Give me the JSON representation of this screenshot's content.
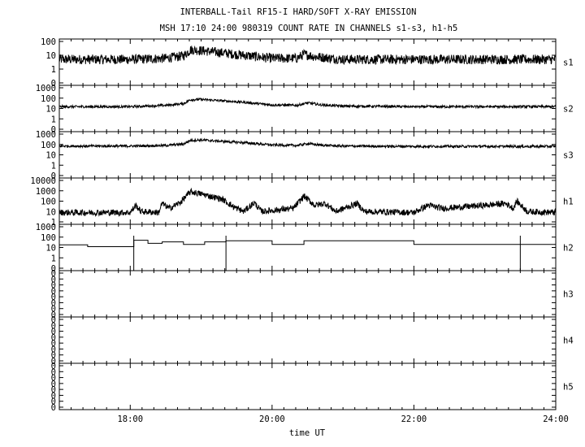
{
  "chart_data": {
    "type": "line",
    "title": "INTERBALL-Tail RF15-I HARD/SOFT X-RAY EMISSION",
    "subtitle": "MSH 17:10 24:00 980319  COUNT RATE IN CHANNELS s1-s3, h1-h5",
    "xlabel": "time UT",
    "x_ticks": [
      "18:00",
      "20:00",
      "22:00",
      "24:00"
    ],
    "x_range_hours": [
      17.0,
      24.0
    ],
    "yscale": "log",
    "grid": false,
    "panels": [
      {
        "name": "s1",
        "y_ticks": [
          "100",
          "10",
          "1",
          "0"
        ],
        "points": [
          [
            17.0,
            5
          ],
          [
            17.5,
            5
          ],
          [
            18.0,
            5
          ],
          [
            18.5,
            6
          ],
          [
            18.75,
            9
          ],
          [
            18.85,
            25
          ],
          [
            19.0,
            22
          ],
          [
            19.3,
            15
          ],
          [
            19.6,
            10
          ],
          [
            20.0,
            6
          ],
          [
            20.35,
            6
          ],
          [
            20.45,
            12
          ],
          [
            20.6,
            8
          ],
          [
            21.0,
            5
          ],
          [
            22.0,
            5
          ],
          [
            23.0,
            5
          ],
          [
            24.0,
            5
          ]
        ]
      },
      {
        "name": "s2",
        "y_ticks": [
          "1000",
          "100",
          "10",
          "1",
          "0"
        ],
        "points": [
          [
            17.0,
            15
          ],
          [
            17.5,
            15
          ],
          [
            18.0,
            15
          ],
          [
            18.5,
            20
          ],
          [
            18.75,
            30
          ],
          [
            18.85,
            70
          ],
          [
            19.0,
            75
          ],
          [
            19.3,
            55
          ],
          [
            19.6,
            40
          ],
          [
            20.0,
            22
          ],
          [
            20.35,
            20
          ],
          [
            20.5,
            35
          ],
          [
            20.7,
            22
          ],
          [
            21.0,
            17
          ],
          [
            22.0,
            15
          ],
          [
            23.0,
            15
          ],
          [
            24.0,
            15
          ]
        ]
      },
      {
        "name": "s3",
        "y_ticks": [
          "1000",
          "100",
          "10",
          "1",
          "0"
        ],
        "points": [
          [
            17.0,
            70
          ],
          [
            17.5,
            70
          ],
          [
            18.0,
            70
          ],
          [
            18.5,
            80
          ],
          [
            18.75,
            110
          ],
          [
            18.85,
            250
          ],
          [
            19.0,
            270
          ],
          [
            19.3,
            200
          ],
          [
            19.6,
            150
          ],
          [
            20.0,
            90
          ],
          [
            20.35,
            80
          ],
          [
            20.5,
            120
          ],
          [
            20.7,
            85
          ],
          [
            21.0,
            70
          ],
          [
            22.0,
            65
          ],
          [
            23.0,
            65
          ],
          [
            24.0,
            65
          ]
        ]
      },
      {
        "name": "h1",
        "y_ticks": [
          "10000",
          "1000",
          "100",
          "10",
          "1"
        ],
        "points": [
          [
            17.0,
            8
          ],
          [
            17.5,
            8
          ],
          [
            18.0,
            8
          ],
          [
            18.08,
            40
          ],
          [
            18.15,
            10
          ],
          [
            18.4,
            8
          ],
          [
            18.45,
            60
          ],
          [
            18.55,
            20
          ],
          [
            18.7,
            70
          ],
          [
            18.85,
            800
          ],
          [
            19.0,
            500
          ],
          [
            19.3,
            150
          ],
          [
            19.35,
            90
          ],
          [
            19.45,
            30
          ],
          [
            19.6,
            10
          ],
          [
            19.75,
            70
          ],
          [
            19.85,
            10
          ],
          [
            20.3,
            20
          ],
          [
            20.45,
            300
          ],
          [
            20.6,
            40
          ],
          [
            20.75,
            60
          ],
          [
            20.9,
            10
          ],
          [
            21.2,
            60
          ],
          [
            21.3,
            10
          ],
          [
            22.0,
            8
          ],
          [
            22.2,
            40
          ],
          [
            22.4,
            20
          ],
          [
            23.0,
            40
          ],
          [
            23.3,
            60
          ],
          [
            23.4,
            20
          ],
          [
            23.45,
            100
          ],
          [
            23.6,
            10
          ],
          [
            24.0,
            8
          ]
        ]
      },
      {
        "name": "h2",
        "steps": [
          [
            17.0,
            18
          ],
          [
            17.4,
            12
          ],
          [
            18.05,
            50
          ],
          [
            18.25,
            25
          ],
          [
            18.45,
            35
          ],
          [
            18.75,
            20
          ],
          [
            19.05,
            35
          ],
          [
            19.35,
            45
          ],
          [
            20.0,
            20
          ],
          [
            20.45,
            45
          ],
          [
            22.0,
            20
          ],
          [
            23.5,
            20
          ],
          [
            24.0,
            20
          ]
        ],
        "y_ticks": [
          "1000",
          "100",
          "10",
          "1",
          "0"
        ]
      },
      {
        "name": "h3",
        "y_ticks": [
          "0",
          "0",
          "0",
          "0",
          "0",
          "0",
          "0",
          "0"
        ]
      },
      {
        "name": "h4",
        "y_ticks": [
          "0",
          "0",
          "0",
          "0",
          "0",
          "0",
          "0",
          "0"
        ]
      },
      {
        "name": "h5",
        "y_ticks": [
          "0",
          "0",
          "0",
          "0",
          "0",
          "0",
          "0",
          "0"
        ]
      }
    ]
  }
}
